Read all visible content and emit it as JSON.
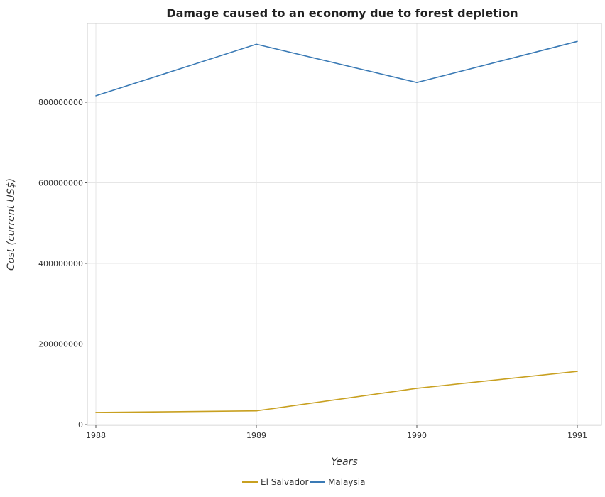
{
  "chart_data": {
    "type": "line",
    "title": "Damage caused to an economy due to forest depletion",
    "xlabel": "Years",
    "ylabel": "Cost (current US$)",
    "x": [
      "1988",
      "1989",
      "1990",
      "1991"
    ],
    "y_ticks": [
      "0",
      "200000000",
      "400000000",
      "600000000",
      "800000000"
    ],
    "ylim": [
      0,
      980000000
    ],
    "grid": true,
    "legend_position": "bottom-center",
    "series": [
      {
        "name": "El Salvador",
        "color": "#c8a020",
        "values": [
          30000000,
          34000000,
          90000000,
          132000000
        ]
      },
      {
        "name": "Malaysia",
        "color": "#3a7ab5",
        "values": [
          816000000,
          944000000,
          849000000,
          951000000
        ]
      }
    ]
  }
}
